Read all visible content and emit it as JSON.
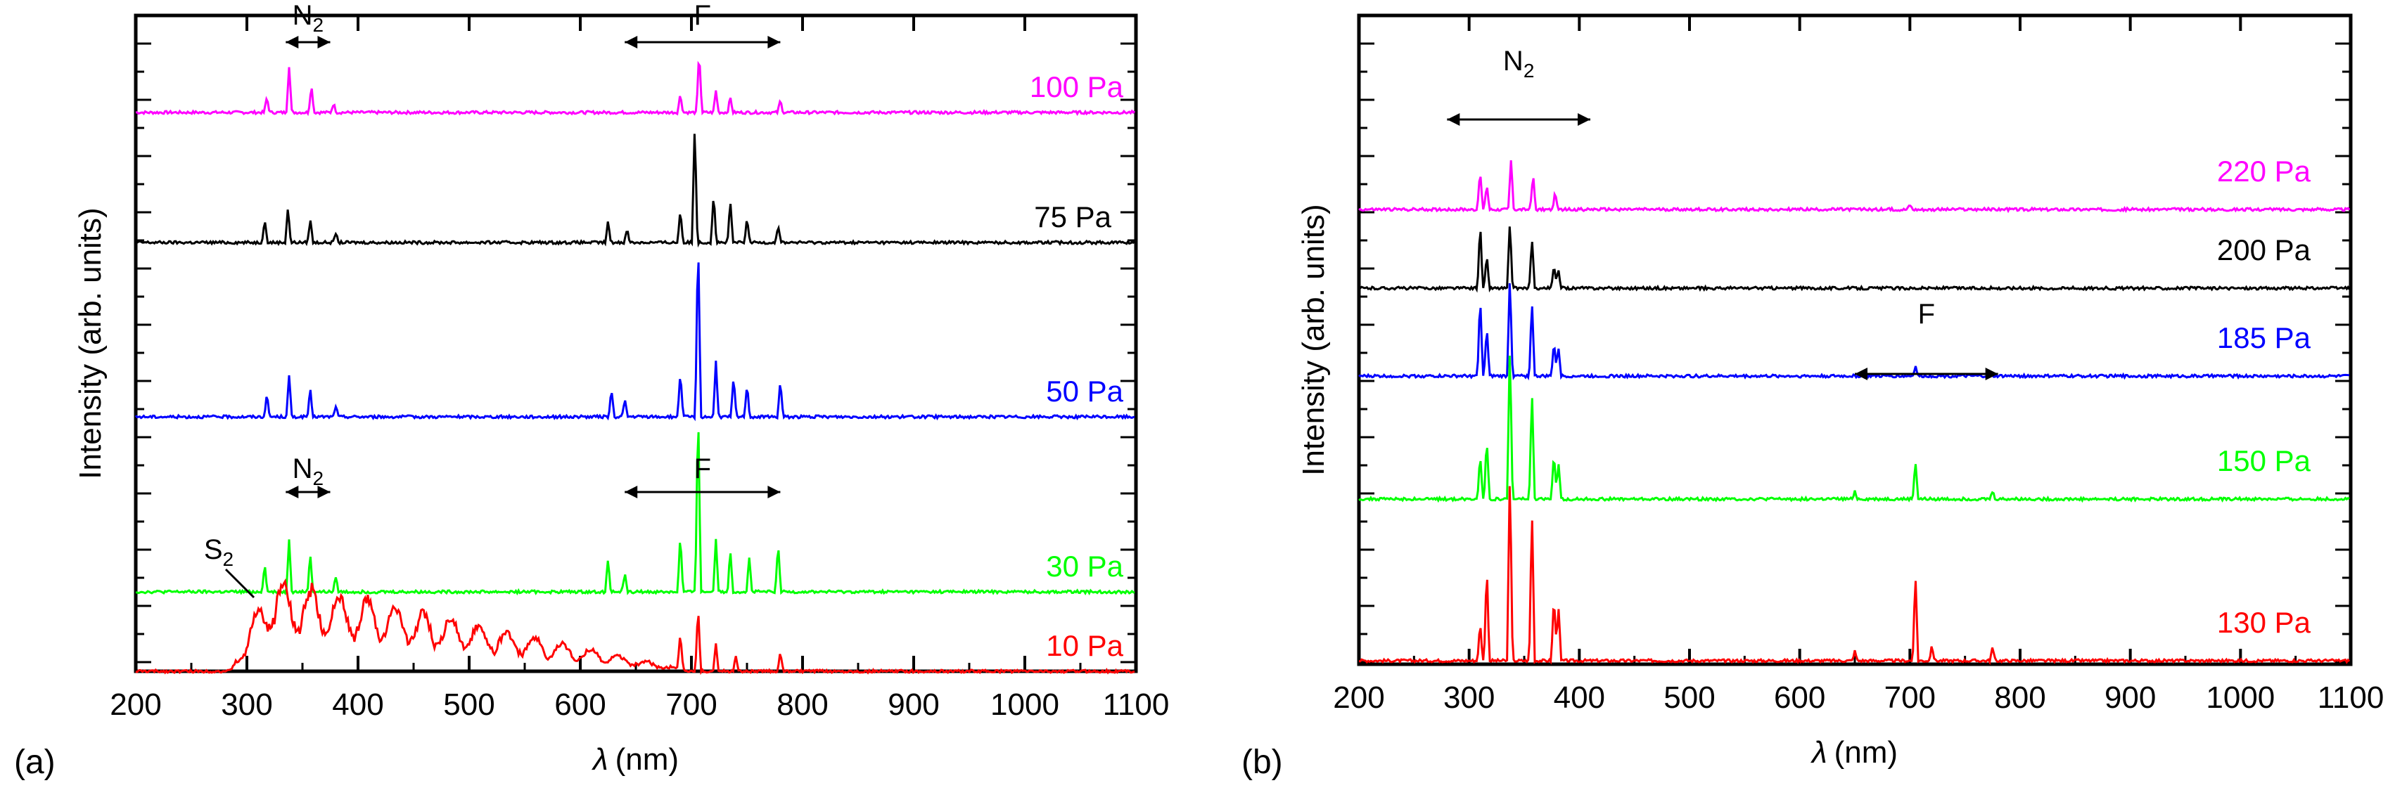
{
  "chart_data": [
    {
      "type": "line",
      "panel_label": "(a)",
      "xlabel_symbol": "λ",
      "xlabel_unit": "(nm)",
      "ylabel": "Intensity (arb. units)",
      "xlim": [
        200,
        1100
      ],
      "xticks": [
        "200",
        "300",
        "400",
        "500",
        "600",
        "700",
        "800",
        "900",
        "1000",
        "1100"
      ],
      "series": [
        {
          "name": "100 Pa",
          "color": "#ff00ff",
          "peaks": [
            [
              318,
              0.25
            ],
            [
              338,
              0.75
            ],
            [
              358,
              0.45
            ],
            [
              378,
              0.15
            ],
            [
              690,
              0.3
            ],
            [
              707,
              1.0
            ],
            [
              722,
              0.35
            ],
            [
              735,
              0.25
            ],
            [
              780,
              0.2
            ]
          ],
          "scale": 0.52
        },
        {
          "name": "75 Pa",
          "color": "#000000",
          "peaks": [
            [
              316,
              0.2
            ],
            [
              337,
              0.3
            ],
            [
              357,
              0.2
            ],
            [
              380,
              0.08
            ],
            [
              625,
              0.18
            ],
            [
              642,
              0.12
            ],
            [
              690,
              0.28
            ],
            [
              703,
              1.0
            ],
            [
              720,
              0.42
            ],
            [
              735,
              0.35
            ],
            [
              750,
              0.2
            ],
            [
              778,
              0.15
            ]
          ],
          "scale": 1.0
        },
        {
          "name": "50 Pa",
          "color": "#0000ff",
          "peaks": [
            [
              318,
              0.12
            ],
            [
              338,
              0.22
            ],
            [
              357,
              0.15
            ],
            [
              380,
              0.06
            ],
            [
              628,
              0.15
            ],
            [
              640,
              0.1
            ],
            [
              690,
              0.25
            ],
            [
              706,
              1.0
            ],
            [
              722,
              0.3
            ],
            [
              738,
              0.22
            ],
            [
              750,
              0.18
            ],
            [
              780,
              0.2
            ]
          ],
          "scale": 1.55
        },
        {
          "name": "30 Pa",
          "color": "#00ff00",
          "peaks": [
            [
              316,
              0.15
            ],
            [
              338,
              0.28
            ],
            [
              357,
              0.2
            ],
            [
              380,
              0.08
            ],
            [
              625,
              0.18
            ],
            [
              640,
              0.1
            ],
            [
              690,
              0.3
            ],
            [
              706,
              1.0
            ],
            [
              722,
              0.28
            ],
            [
              735,
              0.22
            ],
            [
              752,
              0.18
            ],
            [
              778,
              0.25
            ]
          ],
          "scale": 1.6
        },
        {
          "name": "10 Pa",
          "color": "#ff0000",
          "peaks": [
            [
              690,
              0.35
            ],
            [
              706,
              0.6
            ],
            [
              722,
              0.25
            ],
            [
              740,
              0.15
            ],
            [
              780,
              0.2
            ]
          ],
          "scale": 0.9,
          "continuum": true
        }
      ],
      "annotations": [
        {
          "text": "N",
          "sub": "2",
          "from": 335,
          "to": 375,
          "row": 0
        },
        {
          "text": "F",
          "from": 640,
          "to": 780,
          "row": 0
        },
        {
          "text": "N",
          "sub": "2",
          "from": 335,
          "to": 375,
          "row": 3
        },
        {
          "text": "F",
          "from": 640,
          "to": 780,
          "row": 3
        },
        {
          "text": "S",
          "sub": "2",
          "arrow_to": 300,
          "row": 4
        }
      ]
    },
    {
      "type": "line",
      "panel_label": "(b)",
      "xlabel_symbol": "λ",
      "xlabel_unit": "(nm)",
      "ylabel": "Intensity (arb. units)",
      "xlim": [
        200,
        1100
      ],
      "xticks": [
        "200",
        "300",
        "400",
        "500",
        "600",
        "700",
        "800",
        "900",
        "1000",
        "1100"
      ],
      "series": [
        {
          "name": "220 Pa",
          "color": "#ff00ff",
          "peaks": [
            [
              310,
              0.6
            ],
            [
              316,
              0.4
            ],
            [
              338,
              0.75
            ],
            [
              358,
              0.55
            ],
            [
              378,
              0.25
            ],
            [
              700,
              0.08
            ]
          ],
          "scale": 0.55
        },
        {
          "name": "200 Pa",
          "color": "#000000",
          "peaks": [
            [
              310,
              1.0
            ],
            [
              316,
              0.5
            ],
            [
              337,
              1.0
            ],
            [
              357,
              0.75
            ],
            [
              377,
              0.35
            ],
            [
              381,
              0.3
            ]
          ],
          "scale": 0.55
        },
        {
          "name": "185 Pa",
          "color": "#0000ff",
          "peaks": [
            [
              310,
              0.8
            ],
            [
              316,
              0.5
            ],
            [
              337,
              1.0
            ],
            [
              357,
              0.75
            ],
            [
              377,
              0.35
            ],
            [
              381,
              0.3
            ],
            [
              705,
              0.1
            ]
          ],
          "scale": 0.85
        },
        {
          "name": "150 Pa",
          "color": "#00ff00",
          "peaks": [
            [
              310,
              0.3
            ],
            [
              316,
              0.4
            ],
            [
              337,
              1.0
            ],
            [
              357,
              0.7
            ],
            [
              377,
              0.3
            ],
            [
              381,
              0.25
            ],
            [
              650,
              0.05
            ],
            [
              705,
              0.25
            ],
            [
              775,
              0.05
            ]
          ],
          "scale": 1.3
        },
        {
          "name": "130 Pa",
          "color": "#ff0000",
          "peaks": [
            [
              310,
              0.2
            ],
            [
              316,
              0.5
            ],
            [
              337,
              1.0
            ],
            [
              357,
              0.8
            ],
            [
              377,
              0.35
            ],
            [
              381,
              0.3
            ],
            [
              650,
              0.05
            ],
            [
              705,
              0.45
            ],
            [
              720,
              0.08
            ],
            [
              775,
              0.07
            ]
          ],
          "scale": 1.6
        }
      ],
      "annotations": [
        {
          "text": "N",
          "sub": "2",
          "from": 280,
          "to": 410,
          "row": "top"
        },
        {
          "text": "F",
          "from": 650,
          "to": 780,
          "row": 2
        }
      ]
    }
  ]
}
